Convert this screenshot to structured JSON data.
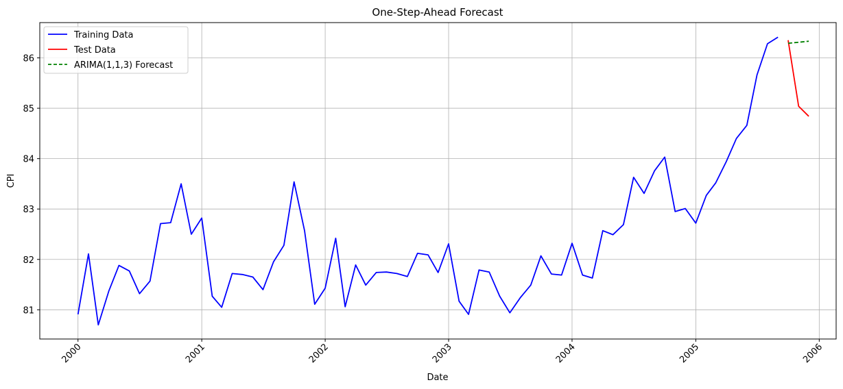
{
  "chart_data": {
    "type": "line",
    "title": "One-Step-Ahead Forecast",
    "xlabel": "Date",
    "ylabel": "CPI",
    "xlim": [
      "1999-09-10",
      "2006-02-20"
    ],
    "ylim": [
      80.42,
      86.7
    ],
    "x_ticks": [
      "2000-01-01",
      "2001-01-01",
      "2002-01-01",
      "2003-01-01",
      "2004-01-01",
      "2005-01-01",
      "2006-01-01"
    ],
    "x_tick_labels": [
      "2000",
      "2001",
      "2002",
      "2003",
      "2004",
      "2005",
      "2006"
    ],
    "y_ticks": [
      81,
      82,
      83,
      84,
      85,
      86
    ],
    "y_tick_labels": [
      "81",
      "82",
      "83",
      "84",
      "85",
      "86"
    ],
    "grid": true,
    "legend_position": "top-left",
    "series": [
      {
        "name": "Training Data",
        "color": "#0000ff",
        "style": "solid",
        "x": [
          "2000-01-01",
          "2000-02-01",
          "2000-03-01",
          "2000-04-01",
          "2000-05-01",
          "2000-06-01",
          "2000-07-01",
          "2000-08-01",
          "2000-09-01",
          "2000-10-01",
          "2000-11-01",
          "2000-12-01",
          "2001-01-01",
          "2001-02-01",
          "2001-03-01",
          "2001-04-01",
          "2001-05-01",
          "2001-06-01",
          "2001-07-01",
          "2001-08-01",
          "2001-09-01",
          "2001-10-01",
          "2001-11-01",
          "2001-12-01",
          "2002-01-01",
          "2002-02-01",
          "2002-03-01",
          "2002-04-01",
          "2002-05-01",
          "2002-06-01",
          "2002-07-01",
          "2002-08-01",
          "2002-09-01",
          "2002-10-01",
          "2002-11-01",
          "2002-12-01",
          "2003-01-01",
          "2003-02-01",
          "2003-03-01",
          "2003-04-01",
          "2003-05-01",
          "2003-06-01",
          "2003-07-01",
          "2003-08-01",
          "2003-09-01",
          "2003-10-01",
          "2003-11-01",
          "2003-12-01",
          "2004-01-01",
          "2004-02-01",
          "2004-03-01",
          "2004-04-01",
          "2004-05-01",
          "2004-06-01",
          "2004-07-01",
          "2004-08-01",
          "2004-09-01",
          "2004-10-01",
          "2004-11-01",
          "2004-12-01",
          "2005-01-01",
          "2005-02-01",
          "2005-03-01",
          "2005-04-01",
          "2005-05-01",
          "2005-06-01",
          "2005-07-01",
          "2005-08-01",
          "2005-09-01"
        ],
        "y": [
          80.91,
          82.11,
          80.7,
          81.37,
          81.88,
          81.77,
          81.32,
          81.57,
          82.71,
          82.73,
          83.5,
          82.5,
          82.82,
          81.27,
          81.05,
          81.72,
          81.7,
          81.65,
          81.4,
          81.95,
          82.28,
          83.54,
          82.57,
          81.11,
          81.43,
          82.42,
          81.06,
          81.89,
          81.49,
          81.74,
          81.75,
          81.72,
          81.66,
          82.12,
          82.09,
          81.74,
          82.31,
          81.17,
          80.91,
          81.79,
          81.75,
          81.27,
          80.94,
          81.24,
          81.49,
          82.07,
          81.71,
          81.69,
          82.32,
          81.69,
          81.63,
          82.57,
          82.49,
          82.69,
          83.63,
          83.31,
          83.76,
          84.03,
          82.95,
          83.01,
          82.72,
          83.27,
          83.52,
          83.94,
          84.4,
          84.66,
          85.66,
          86.28,
          86.41
        ]
      },
      {
        "name": "Test Data",
        "color": "#ff0000",
        "style": "solid",
        "x": [
          "2005-10-01",
          "2005-11-01",
          "2005-12-01"
        ],
        "y": [
          86.35,
          85.04,
          84.84
        ]
      },
      {
        "name": "ARIMA(1,1,3) Forecast",
        "color": "#008000",
        "style": "dashed",
        "x": [
          "2005-10-01",
          "2005-11-01",
          "2005-12-01"
        ],
        "y": [
          86.29,
          86.31,
          86.33
        ]
      }
    ]
  }
}
